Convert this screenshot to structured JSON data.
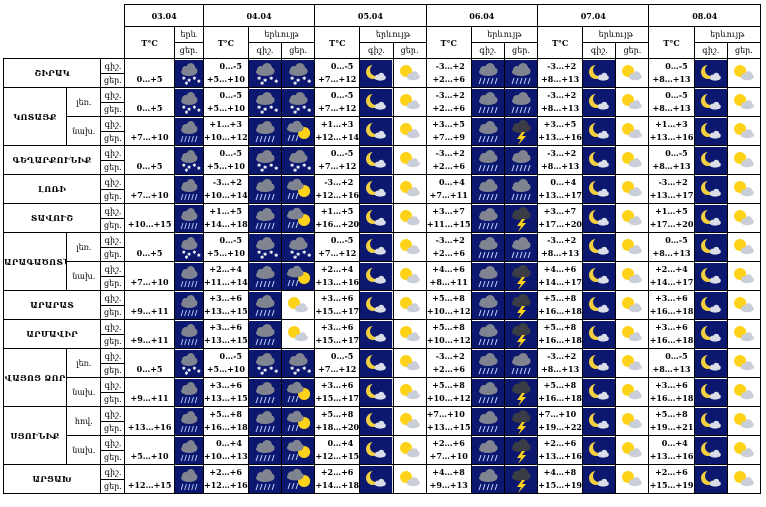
{
  "colors": {
    "night": "#0c1870",
    "cloud": "#7f8490",
    "darkcloud": "#3a3d45",
    "sun": "#ffd21a",
    "moon": "#f2d040",
    "sky": "#dfe5f5"
  },
  "header": {
    "days": [
      "03.04",
      "04.04",
      "05.04",
      "06.04",
      "07.04",
      "08.04"
    ],
    "temp_label": "T°C",
    "weather_label": "երևույթ",
    "weather_label_short": "երև",
    "night_label": "գիշ.",
    "day_label": "ցեր."
  },
  "periods": {
    "night": "գիշ.",
    "day": "ցեր."
  },
  "rows": [
    {
      "region": "ՇԻՐԱԿ",
      "sub": "",
      "span": 1,
      "temps": [
        [
          "",
          "0…+5"
        ],
        [
          "0…-5",
          "+5…+10"
        ],
        [
          "0…-5",
          "+7…+12"
        ],
        [
          "-3…+2",
          "+2…+6"
        ],
        [
          "-3…+2",
          "+8…+13"
        ],
        [
          "0…-5",
          "+8…+13"
        ]
      ],
      "icons": [
        [
          "cloud-snow"
        ],
        [
          "cloud-snow",
          "cloud-snow"
        ],
        [
          "moon-cloud",
          "sun-cloud"
        ],
        [
          "cloud-rain",
          "cloud-rain"
        ],
        [
          "moon-cloud",
          "sun-cloud"
        ],
        [
          "moon-cloud",
          "sun-cloud"
        ]
      ]
    },
    {
      "region": "ԿՈՏԱՅՔ",
      "sub": "լեռ.",
      "span": 2,
      "temps": [
        [
          "",
          "0…+5"
        ],
        [
          "0…-5",
          "+5…+10"
        ],
        [
          "0…-5",
          "+7…+12"
        ],
        [
          "-3…+2",
          "+2…+6"
        ],
        [
          "-3…+2",
          "+8…+13"
        ],
        [
          "0…-5",
          "+8…+13"
        ]
      ],
      "icons": [
        [
          "cloud-snow"
        ],
        [
          "cloud-snow",
          "cloud-snow"
        ],
        [
          "moon-cloud",
          "sun-cloud"
        ],
        [
          "cloud-rain",
          "cloud-rain"
        ],
        [
          "moon-cloud",
          "sun-cloud"
        ],
        [
          "moon-cloud",
          "sun-cloud"
        ]
      ]
    },
    {
      "region": "",
      "sub": "նախ.",
      "span": 0,
      "temps": [
        [
          "",
          "+7…+10"
        ],
        [
          "+1…+3",
          "+10…+12"
        ],
        [
          "+1…+3",
          "+12…+14"
        ],
        [
          "+3…+5",
          "+7…+9"
        ],
        [
          "+3…+5",
          "+13…+16"
        ],
        [
          "+1…+3",
          "+13…+16"
        ]
      ],
      "icons": [
        [
          "cloud-rain"
        ],
        [
          "cloud-rain",
          "sun-rain"
        ],
        [
          "moon-cloud",
          "sun-cloud"
        ],
        [
          "cloud-rain",
          "cloud-storm"
        ],
        [
          "moon-cloud",
          "sun-cloud"
        ],
        [
          "moon-cloud",
          "sun-cloud"
        ]
      ]
    },
    {
      "region": "ԳԵՂԱՐՔՈՒՆԻՔ",
      "sub": "",
      "span": 1,
      "temps": [
        [
          "",
          "0…+5"
        ],
        [
          "0…-5",
          "+5…+10"
        ],
        [
          "0…-5",
          "+7…+12"
        ],
        [
          "-3…+2",
          "+2…+6"
        ],
        [
          "-3…+2",
          "+8…+13"
        ],
        [
          "0…-5",
          "+8…+13"
        ]
      ],
      "icons": [
        [
          "cloud-snow"
        ],
        [
          "cloud-snow",
          "cloud-snow"
        ],
        [
          "moon-cloud",
          "sun-cloud"
        ],
        [
          "cloud-rain",
          "cloud-rain"
        ],
        [
          "moon-cloud",
          "sun-cloud"
        ],
        [
          "moon-cloud",
          "sun-cloud"
        ]
      ]
    },
    {
      "region": "ԼՈՌԻ",
      "sub": "",
      "span": 1,
      "temps": [
        [
          "",
          "+7…+10"
        ],
        [
          "-3…+2",
          "+10…+14"
        ],
        [
          "-3…+2",
          "+12…+16"
        ],
        [
          "0…+4",
          "+7…+11"
        ],
        [
          "0…+4",
          "+13…+17"
        ],
        [
          "-3…+2",
          "+13…+17"
        ]
      ],
      "icons": [
        [
          "cloud-rain"
        ],
        [
          "cloud-rain",
          "sun-rain"
        ],
        [
          "moon-cloud",
          "sun-cloud"
        ],
        [
          "cloud-rain",
          "cloud-rain"
        ],
        [
          "moon-cloud",
          "sun-cloud"
        ],
        [
          "moon-cloud",
          "sun-cloud"
        ]
      ]
    },
    {
      "region": "ՏԱՎՈՒՇ",
      "sub": "",
      "span": 1,
      "temps": [
        [
          "",
          "+10…+15"
        ],
        [
          "+1…+5",
          "+14…+18"
        ],
        [
          "+1…+5",
          "+16…+20"
        ],
        [
          "+3…+7",
          "+11…+15"
        ],
        [
          "+3…+7",
          "+17…+20"
        ],
        [
          "+1…+5",
          "+17…+20"
        ]
      ],
      "icons": [
        [
          "cloud-rain"
        ],
        [
          "cloud-rain",
          "sun-rain"
        ],
        [
          "moon-cloud",
          "sun-cloud"
        ],
        [
          "cloud-rain",
          "cloud-storm"
        ],
        [
          "moon-cloud",
          "sun-cloud"
        ],
        [
          "moon-cloud",
          "sun-cloud"
        ]
      ]
    },
    {
      "region": "ԱՐԱԳԱԾՈՏՆ",
      "sub": "լեռ.",
      "span": 2,
      "temps": [
        [
          "",
          "0…+5"
        ],
        [
          "0…-5",
          "+5…+10"
        ],
        [
          "0…-5",
          "+7…+12"
        ],
        [
          "-3…+2",
          "+2…+6"
        ],
        [
          "-3…+2",
          "+8…+13"
        ],
        [
          "0…-5",
          "+8…+13"
        ]
      ],
      "icons": [
        [
          "cloud-snow"
        ],
        [
          "cloud-snow",
          "cloud-snow"
        ],
        [
          "moon-cloud",
          "sun-cloud"
        ],
        [
          "cloud-rain",
          "cloud-rain"
        ],
        [
          "moon-cloud",
          "sun-cloud"
        ],
        [
          "moon-cloud",
          "sun-cloud"
        ]
      ]
    },
    {
      "region": "",
      "sub": "նախ.",
      "span": 0,
      "temps": [
        [
          "",
          "+7…+10"
        ],
        [
          "+2…+4",
          "+11…+14"
        ],
        [
          "+2…+4",
          "+13…+16"
        ],
        [
          "+4…+6",
          "+8…+11"
        ],
        [
          "+4…+6",
          "+14…+17"
        ],
        [
          "+2…+4",
          "+14…+17"
        ]
      ],
      "icons": [
        [
          "cloud-rain"
        ],
        [
          "cloud-rain",
          "sun-rain"
        ],
        [
          "moon-cloud",
          "sun-cloud"
        ],
        [
          "cloud-rain",
          "cloud-storm"
        ],
        [
          "moon-cloud",
          "sun-cloud"
        ],
        [
          "moon-cloud",
          "sun-cloud"
        ]
      ]
    },
    {
      "region": "ԱՐԱՐԱՏ",
      "sub": "",
      "span": 1,
      "temps": [
        [
          "",
          "+9…+11"
        ],
        [
          "+3…+6",
          "+13…+15"
        ],
        [
          "+3…+6",
          "+15…+17"
        ],
        [
          "+5…+8",
          "+10…+12"
        ],
        [
          "+5…+8",
          "+16…+18"
        ],
        [
          "+3…+6",
          "+16…+18"
        ]
      ],
      "icons": [
        [
          "cloud-rain"
        ],
        [
          "cloud-rain",
          "sun-cloud"
        ],
        [
          "moon-cloud",
          "sun-cloud"
        ],
        [
          "cloud-rain",
          "cloud-storm"
        ],
        [
          "moon-cloud",
          "sun-cloud"
        ],
        [
          "moon-cloud",
          "sun-cloud"
        ]
      ]
    },
    {
      "region": "ԱՐՄԱՎԻՐ",
      "sub": "",
      "span": 1,
      "temps": [
        [
          "",
          "+9…+11"
        ],
        [
          "+3…+6",
          "+13…+15"
        ],
        [
          "+3…+6",
          "+15…+17"
        ],
        [
          "+5…+8",
          "+10…+12"
        ],
        [
          "+5…+8",
          "+16…+18"
        ],
        [
          "+3…+6",
          "+16…+18"
        ]
      ],
      "icons": [
        [
          "cloud-rain"
        ],
        [
          "cloud-rain",
          "sun-cloud"
        ],
        [
          "moon-cloud",
          "sun-cloud"
        ],
        [
          "cloud-rain",
          "cloud-storm"
        ],
        [
          "moon-cloud",
          "sun-cloud"
        ],
        [
          "moon-cloud",
          "sun-cloud"
        ]
      ]
    },
    {
      "region": "ՎԱՅՈՑ ՁՈՐ",
      "sub": "լեռ.",
      "span": 2,
      "temps": [
        [
          "",
          "0…+5"
        ],
        [
          "0…-5",
          "+5…+10"
        ],
        [
          "0…-5",
          "+7…+12"
        ],
        [
          "-3…+2",
          "+2…+6"
        ],
        [
          "-3…+2",
          "+8…+13"
        ],
        [
          "0…-5",
          "+8…+13"
        ]
      ],
      "icons": [
        [
          "cloud-snow"
        ],
        [
          "cloud-snow",
          "cloud-snow"
        ],
        [
          "moon-cloud",
          "sun-cloud"
        ],
        [
          "cloud-rain",
          "cloud-rain"
        ],
        [
          "moon-cloud",
          "sun-cloud"
        ],
        [
          "moon-cloud",
          "sun-cloud"
        ]
      ]
    },
    {
      "region": "",
      "sub": "նախ.",
      "span": 0,
      "temps": [
        [
          "",
          "+9…+11"
        ],
        [
          "+3…+6",
          "+13…+15"
        ],
        [
          "+3…+6",
          "+15…+17"
        ],
        [
          "+5…+8",
          "+10…+12"
        ],
        [
          "+5…+8",
          "+16…+18"
        ],
        [
          "+3…+6",
          "+16…+18"
        ]
      ],
      "icons": [
        [
          "cloud-rain"
        ],
        [
          "cloud-rain",
          "sun-rain"
        ],
        [
          "moon-cloud",
          "sun-cloud"
        ],
        [
          "cloud-rain",
          "cloud-storm"
        ],
        [
          "moon-cloud",
          "sun-cloud"
        ],
        [
          "moon-cloud",
          "sun-cloud"
        ]
      ]
    },
    {
      "region": "ՍՅՈՒՆԻՔ",
      "sub": "հով.",
      "span": 2,
      "temps": [
        [
          "",
          "+13…+16"
        ],
        [
          "+5…+8",
          "+16…+18"
        ],
        [
          "+5…+8",
          "+18…+20"
        ],
        [
          "+7…+10",
          "+13…+15"
        ],
        [
          "+7…+10",
          "+19…+22"
        ],
        [
          "+5…+8",
          "+19…+21"
        ]
      ],
      "icons": [
        [
          "cloud-rain"
        ],
        [
          "cloud-rain",
          "sun-rain"
        ],
        [
          "moon-cloud",
          "sun-cloud"
        ],
        [
          "cloud-rain",
          "cloud-storm"
        ],
        [
          "moon-cloud",
          "sun-cloud"
        ],
        [
          "moon-cloud",
          "sun-cloud"
        ]
      ]
    },
    {
      "region": "",
      "sub": "նախ.",
      "span": 0,
      "temps": [
        [
          "",
          "+5…+10"
        ],
        [
          "0…+4",
          "+10…+13"
        ],
        [
          "0…+4",
          "+12…+15"
        ],
        [
          "+2…+6",
          "+7…+10"
        ],
        [
          "+2…+6",
          "+13…+16"
        ],
        [
          "0…+4",
          "+13…+16"
        ]
      ],
      "icons": [
        [
          "cloud-rain"
        ],
        [
          "cloud-rain",
          "sun-rain"
        ],
        [
          "moon-cloud",
          "sun-cloud"
        ],
        [
          "cloud-rain",
          "cloud-storm"
        ],
        [
          "moon-cloud",
          "sun-cloud"
        ],
        [
          "moon-cloud",
          "sun-cloud"
        ]
      ]
    },
    {
      "region": "ԱՐՑԱԽ",
      "sub": "",
      "span": 1,
      "temps": [
        [
          "",
          "+12…+15"
        ],
        [
          "+2…+6",
          "+12…+16"
        ],
        [
          "+2…+6",
          "+14…+18"
        ],
        [
          "+4…+8",
          "+9…+13"
        ],
        [
          "+4…+8",
          "+15…+19"
        ],
        [
          "+2…+6",
          "+15…+19"
        ]
      ],
      "icons": [
        [
          "cloud-rain"
        ],
        [
          "cloud-rain",
          "sun-rain"
        ],
        [
          "moon-cloud",
          "sun-cloud"
        ],
        [
          "cloud-rain",
          "cloud-storm"
        ],
        [
          "moon-cloud",
          "sun-cloud"
        ],
        [
          "moon-cloud",
          "sun-cloud"
        ]
      ]
    }
  ]
}
